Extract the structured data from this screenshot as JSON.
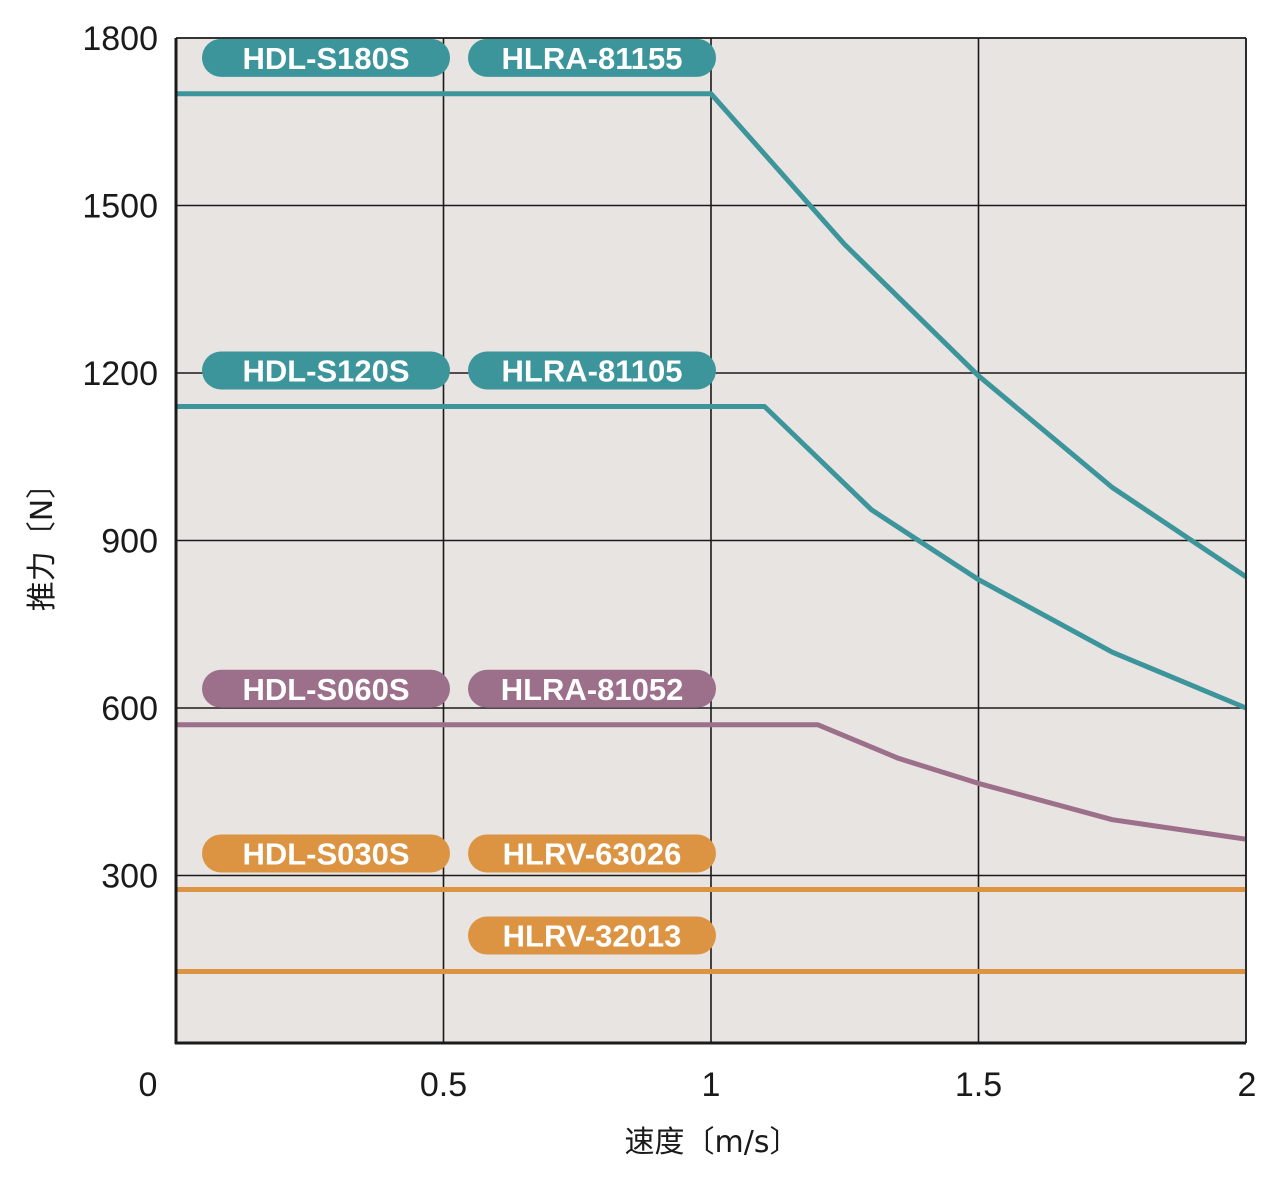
{
  "chart_data": {
    "type": "line",
    "xlabel": "速度〔m/s〕",
    "ylabel": "推力〔N〕",
    "xlim": [
      0,
      2
    ],
    "ylim": [
      0,
      1800
    ],
    "x_ticks": [
      "0",
      "0.5",
      "1",
      "1.5",
      "2"
    ],
    "x_tick_values": [
      0,
      0.5,
      1,
      1.5,
      2
    ],
    "y_ticks": [
      "1800",
      "1500",
      "1200",
      "900",
      "600",
      "300"
    ],
    "y_tick_values": [
      1800,
      1500,
      1200,
      900,
      600,
      300
    ],
    "grid": true,
    "plot_background": "#e8e4e1",
    "colors": {
      "teal": "#3d959c",
      "mauve": "#9c6f8a",
      "orange": "#dc9442"
    },
    "series": [
      {
        "color": "#3d959c",
        "labels": [
          "HDL-S180S",
          "HLRA-81155"
        ],
        "x": [
          0,
          1.0,
          1.25,
          1.5,
          1.75,
          2.0
        ],
        "y": [
          1700,
          1700,
          1430,
          1195,
          995,
          835
        ]
      },
      {
        "color": "#3d959c",
        "labels": [
          "HDL-S120S",
          "HLRA-81105"
        ],
        "x": [
          0,
          1.1,
          1.3,
          1.5,
          1.75,
          2.0
        ],
        "y": [
          1140,
          1140,
          955,
          830,
          700,
          600
        ]
      },
      {
        "color": "#9c6f8a",
        "labels": [
          "HDL-S060S",
          "HLRA-81052"
        ],
        "x": [
          0,
          1.2,
          1.35,
          1.5,
          1.75,
          2.0
        ],
        "y": [
          570,
          570,
          510,
          465,
          400,
          365
        ]
      },
      {
        "color": "#dc9442",
        "labels": [
          "HDL-S030S",
          "HLRV-63026"
        ],
        "x": [
          0,
          2.0
        ],
        "y": [
          275,
          275
        ]
      },
      {
        "color": "#dc9442",
        "labels": [
          "",
          "HLRV-32013"
        ],
        "x": [
          0,
          2.0
        ],
        "y": [
          128,
          128
        ]
      }
    ]
  }
}
